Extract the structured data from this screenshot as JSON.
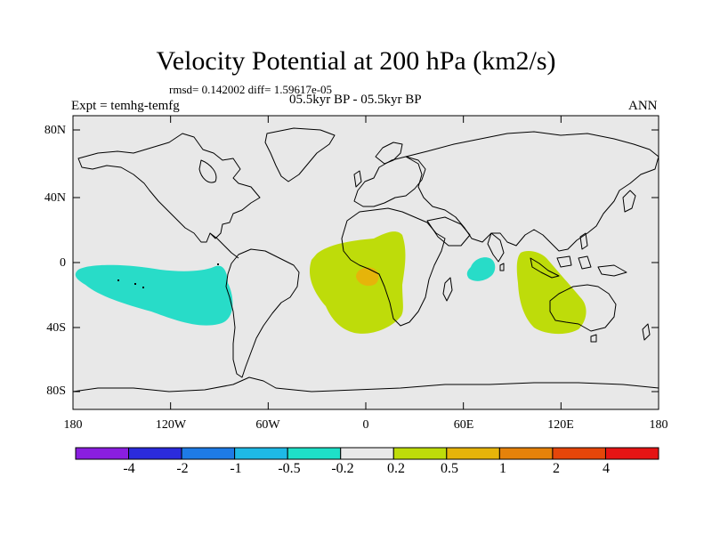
{
  "title": "Velocity Potential at 200 hPa (km2/s)",
  "stats": "rmsd= 0.142002 diff= 1.59617e-05",
  "experiment": "Expt = temhg-temfg",
  "period": "05.5kyr BP - 05.5kyr BP",
  "season": "ANN",
  "map": {
    "lat_ticks": [
      "80N",
      "40N",
      "0",
      "40S",
      "80S"
    ],
    "lon_ticks": [
      "180",
      "120W",
      "60W",
      "0",
      "60E",
      "120E",
      "180"
    ],
    "background_color": "#e8e8e8"
  },
  "colorbar": {
    "labels": [
      "-4",
      "-2",
      "-1",
      "-0.5",
      "-0.2",
      "0.2",
      "0.5",
      "1",
      "2",
      "4"
    ],
    "colors": [
      "#8a1ee0",
      "#2b2bdc",
      "#1e7be6",
      "#1eb9e6",
      "#1ee0c8",
      "#e8e8e8",
      "#bedc0a",
      "#e6b40a",
      "#e6820a",
      "#e6460a",
      "#e61414"
    ]
  },
  "anomalies": [
    {
      "region": "central-pacific",
      "category": "-0.5 to -0.2",
      "color": "#28dcc8"
    },
    {
      "region": "atlantic-africa",
      "category": "0.2 to 0.5",
      "color": "#bedc0a"
    },
    {
      "region": "atlantic-africa-core",
      "category": "0.5 to 1",
      "color": "#e6b40a"
    },
    {
      "region": "west-indian-ocean",
      "category": "-0.5 to -0.2",
      "color": "#28dcc8"
    },
    {
      "region": "east-indian-ocean",
      "category": "0.2 to 0.5",
      "color": "#bedc0a"
    }
  ]
}
